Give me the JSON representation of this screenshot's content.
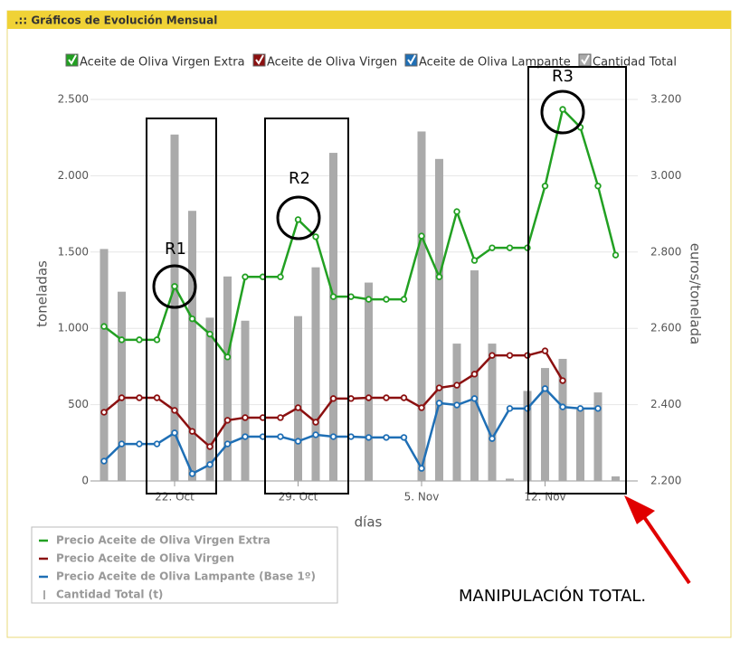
{
  "header": ".:: Gráficos de Evolución  Mensual",
  "chart_data": {
    "type": "bar-line",
    "y_label": "toneladas",
    "y2_label": "euros/tonelada",
    "x_label": "días",
    "categories": [
      null,
      null,
      null,
      null,
      "22. Oct",
      null,
      null,
      null,
      null,
      null,
      null,
      "29. Oct",
      null,
      null,
      null,
      null,
      null,
      null,
      "5. Nov",
      null,
      null,
      null,
      null,
      null,
      null,
      "12. Nov",
      null,
      null,
      null,
      null
    ],
    "ylim": [
      0,
      2500
    ],
    "yticks": [
      0,
      500,
      {
        "value": 1000,
        "label": "1.000"
      },
      {
        "value": 1500,
        "label": "1.500"
      },
      {
        "value": 2000,
        "label": "2.000"
      },
      {
        "value": 2500,
        "label": "2.500"
      }
    ],
    "y2lim": [
      2200,
      3200
    ],
    "y2ticks": [
      {
        "value": 2200,
        "label": "2.200"
      },
      {
        "value": 2400,
        "label": "2.400"
      },
      {
        "value": 2600,
        "label": "2.600"
      },
      {
        "value": 2800,
        "label": "2.800"
      },
      {
        "value": 3000,
        "label": "3.000"
      },
      {
        "value": 3200,
        "label": "3.200"
      }
    ],
    "grid": true,
    "series": [
      {
        "name": "Aceite de Oliva Virgen Extra",
        "type": "line",
        "axis": "y2",
        "color": "#22a022",
        "values": [
          2605,
          2570,
          2570,
          2570,
          2710,
          2625,
          2585,
          2525,
          2735,
          2735,
          2735,
          2885,
          2840,
          2683,
          2683,
          2676,
          2676,
          2676,
          2842,
          2735,
          2906,
          2778,
          2811,
          2811,
          2811,
          2973,
          3174,
          3127,
          2973,
          2792
        ]
      },
      {
        "name": "Aceite de Oliva Virgen",
        "type": "line",
        "axis": "y2",
        "color": "#8b1010",
        "values": [
          2380,
          2418,
          2418,
          2418,
          2385,
          2330,
          2290,
          2359,
          2366,
          2366,
          2366,
          2392,
          2354,
          2416,
          2416,
          2418,
          2418,
          2418,
          2392,
          2444,
          2451,
          2480,
          2529,
          2529,
          2529,
          2541,
          2463,
          null,
          null,
          null
        ]
      },
      {
        "name": "Aceite de Oliva Lampante",
        "type": "line",
        "axis": "y2",
        "color": "#1f6fb5",
        "values": [
          2252,
          2297,
          2297,
          2297,
          2326,
          2219,
          2243,
          2297,
          2316,
          2316,
          2316,
          2304,
          2321,
          2316,
          2316,
          2314,
          2314,
          2314,
          2233,
          2404,
          2399,
          2416,
          2311,
          2390,
          2390,
          2442,
          2394,
          2390,
          2390,
          null
        ]
      },
      {
        "name": "Cantidad Total",
        "type": "bar",
        "color": "#aaaaaa",
        "values": [
          1520,
          1240,
          null,
          null,
          2270,
          1770,
          1070,
          1340,
          1050,
          null,
          null,
          1080,
          1400,
          2150,
          null,
          1300,
          null,
          null,
          2290,
          2110,
          900,
          1380,
          900,
          15,
          590,
          740,
          800,
          470,
          580,
          30
        ]
      }
    ],
    "legend_box_labels": [
      "Precio Aceite de Oliva Virgen Extra",
      "Precio Aceite de Oliva Virgen",
      "Precio Aceite de Oliva Lampante (Base 1º)",
      "Cantidad Total (t)"
    ],
    "annotations": [
      "R1",
      "R2",
      "R3",
      "MANIPULACIÓN TOTAL."
    ]
  }
}
